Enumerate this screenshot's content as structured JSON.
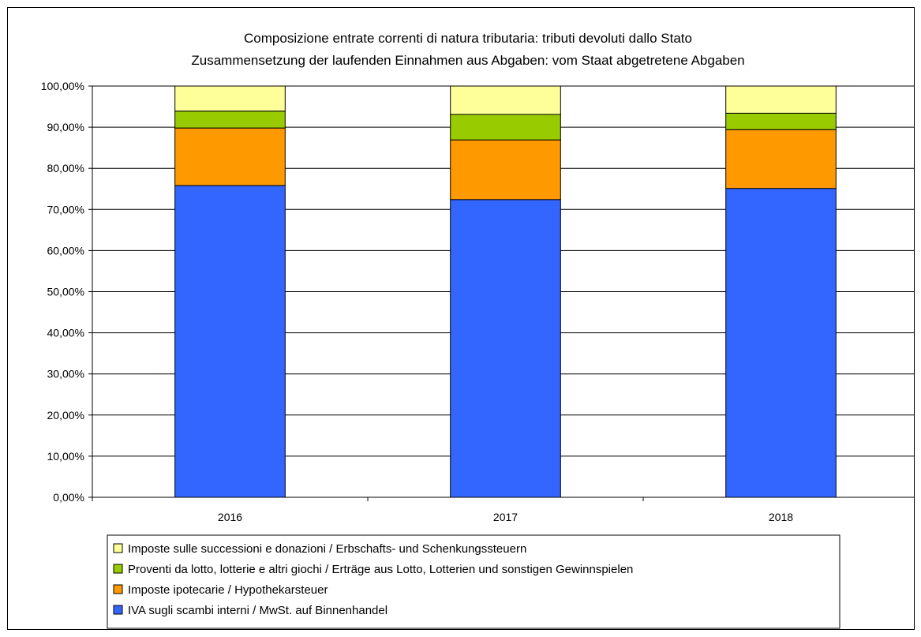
{
  "chart_data": {
    "type": "bar",
    "stacked": true,
    "title_lines": [
      "Composizione entrate correnti di natura tributaria: tributi devoluti dallo Stato",
      "Zusammensetzung der laufenden Einnahmen aus Abgaben: vom Staat abgetretene Abgaben"
    ],
    "categories": [
      "2016",
      "2017",
      "2018"
    ],
    "ylim": [
      0,
      100
    ],
    "yticks": [
      "0,00%",
      "10,00%",
      "20,00%",
      "30,00%",
      "40,00%",
      "50,00%",
      "60,00%",
      "70,00%",
      "80,00%",
      "90,00%",
      "100,00%"
    ],
    "grid": true,
    "legend_position": "bottom",
    "series": [
      {
        "name": "IVA sugli scambi interni / MwSt. auf Binnenhandel",
        "color": "#3366FF",
        "values": [
          75.8,
          72.4,
          75.1
        ]
      },
      {
        "name": "Imposte ipotecarie / Hypothekarsteuer",
        "color": "#FF9900",
        "values": [
          14.0,
          14.5,
          14.3
        ]
      },
      {
        "name": "Proventi da lotto, lotterie e altri giochi / Erträge aus Lotto, Lotterien und sonstigen Gewinnspielen",
        "color": "#99CC00",
        "values": [
          4.1,
          6.2,
          4.0
        ]
      },
      {
        "name": "Imposte sulle successioni e donazioni / Erbschafts- und Schenkungssteuern",
        "color": "#FFFF99",
        "values": [
          6.1,
          6.9,
          6.6
        ]
      }
    ]
  }
}
